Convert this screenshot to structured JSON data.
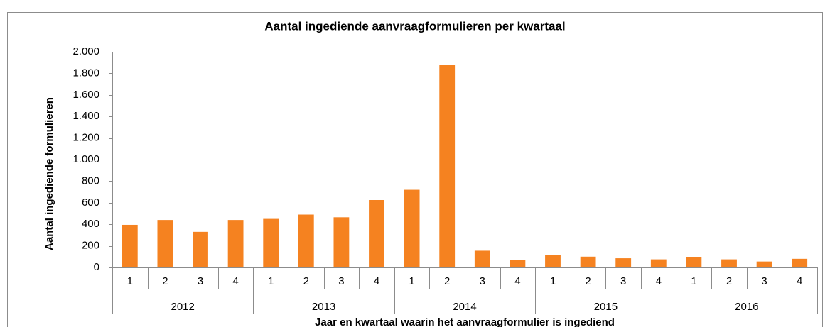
{
  "chart_data": {
    "type": "bar",
    "title": "Aantal ingediende aanvraagformulieren per kwartaal",
    "x_label": "Jaar en kwartaal waarin het aanvraagformulier is ingediend",
    "y_label": "Aantal ingediende formulieren",
    "categories": [
      "1",
      "2",
      "3",
      "4",
      "1",
      "2",
      "3",
      "4",
      "1",
      "2",
      "3",
      "4",
      "1",
      "2",
      "3",
      "4",
      "1",
      "2",
      "3",
      "4"
    ],
    "groups": [
      "2012",
      "2013",
      "2014",
      "2015",
      "2016"
    ],
    "values": [
      395,
      440,
      330,
      440,
      450,
      490,
      465,
      625,
      720,
      1880,
      155,
      70,
      115,
      100,
      85,
      75,
      95,
      75,
      55,
      80
    ],
    "color": "#f58220",
    "ylim": [
      0,
      2000
    ],
    "yticks": [
      0,
      200,
      400,
      600,
      800,
      {
        "value": 1000,
        "label": "1.000"
      },
      {
        "value": 1200,
        "label": "1.200"
      },
      {
        "value": 1400,
        "label": "1.400"
      },
      {
        "value": 1600,
        "label": "1.600"
      },
      {
        "value": 1800,
        "label": "1.800"
      },
      {
        "value": 2000,
        "label": "2.000"
      }
    ],
    "grid": false
  }
}
